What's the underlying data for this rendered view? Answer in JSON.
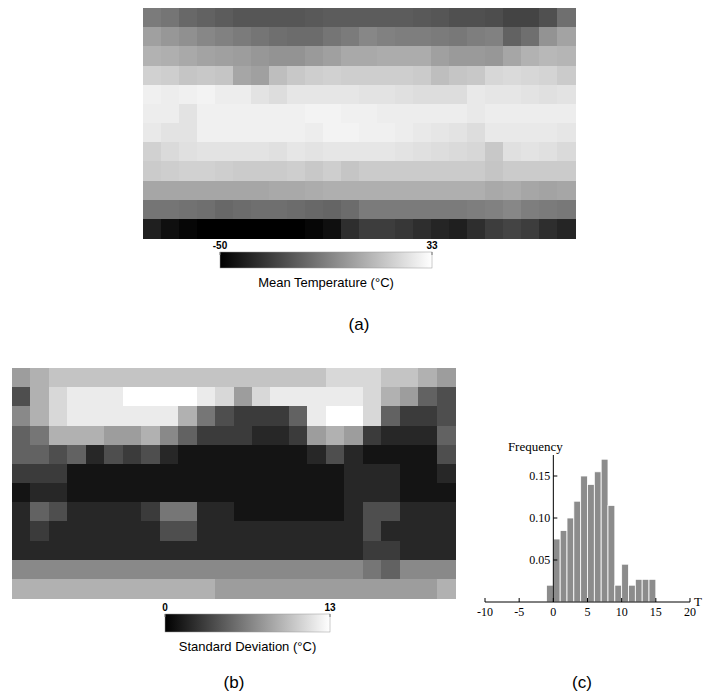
{
  "chart_data": [
    {
      "type": "heatmap",
      "title": "(a)",
      "colorbar_label": "Mean Temperature (°C)",
      "color_range": [
        -50,
        33
      ],
      "color_ticks": [
        -50,
        33
      ],
      "tick_labels": false,
      "cells": [
        [
          -10,
          -12,
          -16,
          -18,
          -20,
          -22,
          -22,
          -22,
          -22,
          -21,
          -20,
          -20,
          -20,
          -20,
          -20,
          -21,
          -22,
          -24,
          -24,
          -25,
          -28,
          -28,
          -24,
          -14
        ],
        [
          2,
          -1,
          -3,
          -6,
          -8,
          -10,
          -12,
          -14,
          -15,
          -15,
          -12,
          -10,
          -6,
          -8,
          -9,
          -9,
          -10,
          -11,
          -9,
          -8,
          -18,
          -14,
          -2,
          3
        ],
        [
          8,
          7,
          5,
          3,
          2,
          1,
          -1,
          -2,
          -2,
          0,
          2,
          5,
          5,
          6,
          6,
          6,
          2,
          0,
          0,
          -1,
          4,
          8,
          10,
          9
        ],
        [
          18,
          17,
          14,
          15,
          14,
          4,
          2,
          12,
          15,
          17,
          18,
          17,
          17,
          17,
          17,
          16,
          12,
          14,
          15,
          20,
          21,
          20,
          19,
          16
        ],
        [
          28,
          27,
          28,
          29,
          27,
          27,
          24,
          22,
          25,
          25,
          25,
          25,
          24,
          24,
          23,
          22,
          22,
          22,
          26,
          25,
          25,
          24,
          23,
          24
        ],
        [
          27,
          27,
          24,
          28,
          28,
          28,
          28,
          28,
          28,
          29,
          29,
          28,
          28,
          27,
          27,
          27,
          27,
          27,
          26,
          27,
          27,
          27,
          27,
          27
        ],
        [
          26,
          24,
          24,
          28,
          28,
          28,
          28,
          28,
          28,
          27,
          29,
          29,
          28,
          28,
          27,
          26,
          25,
          24,
          22,
          26,
          26,
          26,
          26,
          25
        ],
        [
          18,
          21,
          23,
          24,
          24,
          24,
          24,
          23,
          25,
          24,
          25,
          25,
          25,
          25,
          24,
          23,
          22,
          21,
          20,
          15,
          23,
          24,
          23,
          21
        ],
        [
          16,
          17,
          18,
          18,
          17,
          16,
          16,
          16,
          17,
          15,
          17,
          14,
          16,
          16,
          16,
          16,
          16,
          16,
          16,
          14,
          16,
          16,
          16,
          16
        ],
        [
          4,
          4,
          4,
          4,
          4,
          4,
          4,
          5,
          5,
          6,
          7,
          7,
          7,
          7,
          7,
          7,
          7,
          7,
          7,
          5,
          6,
          4,
          3,
          4
        ],
        [
          -12,
          -12,
          -13,
          -14,
          -16,
          -15,
          -14,
          -14,
          -15,
          -16,
          -17,
          -15,
          -10,
          -10,
          -10,
          -10,
          -10,
          -10,
          -9,
          -8,
          -6,
          -9,
          -10,
          -11
        ],
        [
          -40,
          -45,
          -48,
          -50,
          -50,
          -50,
          -50,
          -50,
          -50,
          -48,
          -45,
          -35,
          -30,
          -30,
          -32,
          -35,
          -38,
          -40,
          -35,
          -30,
          -28,
          -30,
          -35,
          -38
        ]
      ]
    },
    {
      "type": "heatmap",
      "title": "(b)",
      "colorbar_label": "Standard Deviation (°C)",
      "color_range": [
        0,
        13
      ],
      "color_ticks": [
        0,
        13
      ],
      "tick_labels": false,
      "cells": [
        [
          8,
          9,
          10,
          10,
          10,
          10,
          10,
          10,
          10,
          10,
          10,
          10,
          10,
          10,
          10,
          10,
          10,
          11,
          11,
          11,
          10,
          10,
          9,
          8
        ],
        [
          4,
          9,
          11,
          12,
          12,
          12,
          13,
          13,
          13,
          13,
          12,
          11,
          8,
          11,
          12,
          12,
          12,
          12,
          12,
          11,
          9,
          8,
          5,
          4
        ],
        [
          7,
          9,
          11,
          12,
          12,
          12,
          12,
          12,
          12,
          9,
          6,
          4,
          3,
          3,
          3,
          5,
          12,
          13,
          13,
          11,
          5,
          3,
          3,
          4
        ],
        [
          5,
          6,
          9,
          9,
          9,
          8,
          8,
          9,
          7,
          5,
          3,
          3,
          3,
          2,
          2,
          3,
          8,
          9,
          8,
          3,
          2,
          2,
          2,
          5
        ],
        [
          5,
          5,
          4,
          5,
          2,
          4,
          3,
          4,
          2,
          1,
          1,
          1,
          1,
          1,
          1,
          1,
          2,
          4,
          2,
          1,
          1,
          1,
          1,
          4
        ],
        [
          3,
          3,
          3,
          1,
          1,
          1,
          1,
          1,
          1,
          1,
          1,
          1,
          1,
          1,
          1,
          1,
          1,
          1,
          2,
          2,
          2,
          1,
          1,
          2
        ],
        [
          1,
          2,
          2,
          1,
          1,
          1,
          1,
          1,
          1,
          1,
          1,
          1,
          1,
          1,
          1,
          1,
          1,
          1,
          2,
          2,
          2,
          1,
          1,
          1
        ],
        [
          2,
          5,
          4,
          2,
          2,
          2,
          2,
          3,
          6,
          6,
          2,
          2,
          1,
          1,
          1,
          1,
          1,
          1,
          2,
          4,
          4,
          2,
          2,
          2
        ],
        [
          2,
          3,
          2,
          2,
          2,
          2,
          2,
          2,
          4,
          4,
          2,
          2,
          2,
          2,
          2,
          2,
          2,
          2,
          2,
          4,
          2,
          2,
          2,
          2
        ],
        [
          2,
          2,
          2,
          2,
          2,
          2,
          2,
          2,
          2,
          2,
          2,
          2,
          2,
          2,
          2,
          2,
          2,
          2,
          2,
          3,
          3,
          2,
          2,
          2
        ],
        [
          7,
          7,
          7,
          7,
          7,
          7,
          7,
          7,
          7,
          7,
          7,
          7,
          7,
          7,
          7,
          7,
          7,
          7,
          7,
          6,
          5,
          7,
          7,
          7
        ],
        [
          9,
          9,
          9,
          9,
          9,
          9,
          9,
          9,
          9,
          9,
          9,
          8,
          8,
          8,
          8,
          8,
          8,
          8,
          8,
          8,
          8,
          8,
          8,
          9
        ]
      ]
    },
    {
      "type": "histogram",
      "title": "(c)",
      "x_label": "T",
      "y_label": "Frequency",
      "color": "#8c8c8c",
      "bins": [
        -1,
        0,
        1,
        2,
        3,
        4,
        5,
        6,
        7,
        8,
        9,
        10,
        11,
        12,
        13,
        14,
        15
      ],
      "values": [
        0.02,
        0.075,
        0.085,
        0.1,
        0.12,
        0.15,
        0.14,
        0.155,
        0.17,
        0.115,
        0.02,
        0.045,
        0.02,
        0.027,
        0.027,
        0.027
      ],
      "xlim": [
        -10,
        20
      ],
      "xticks": [
        -10,
        -5,
        0,
        5,
        10,
        15,
        20
      ],
      "ylim": [
        0,
        0.175
      ],
      "yticks": [
        0.05,
        {
          "value": 0.1,
          "label": "0.10"
        },
        0.15
      ]
    }
  ]
}
